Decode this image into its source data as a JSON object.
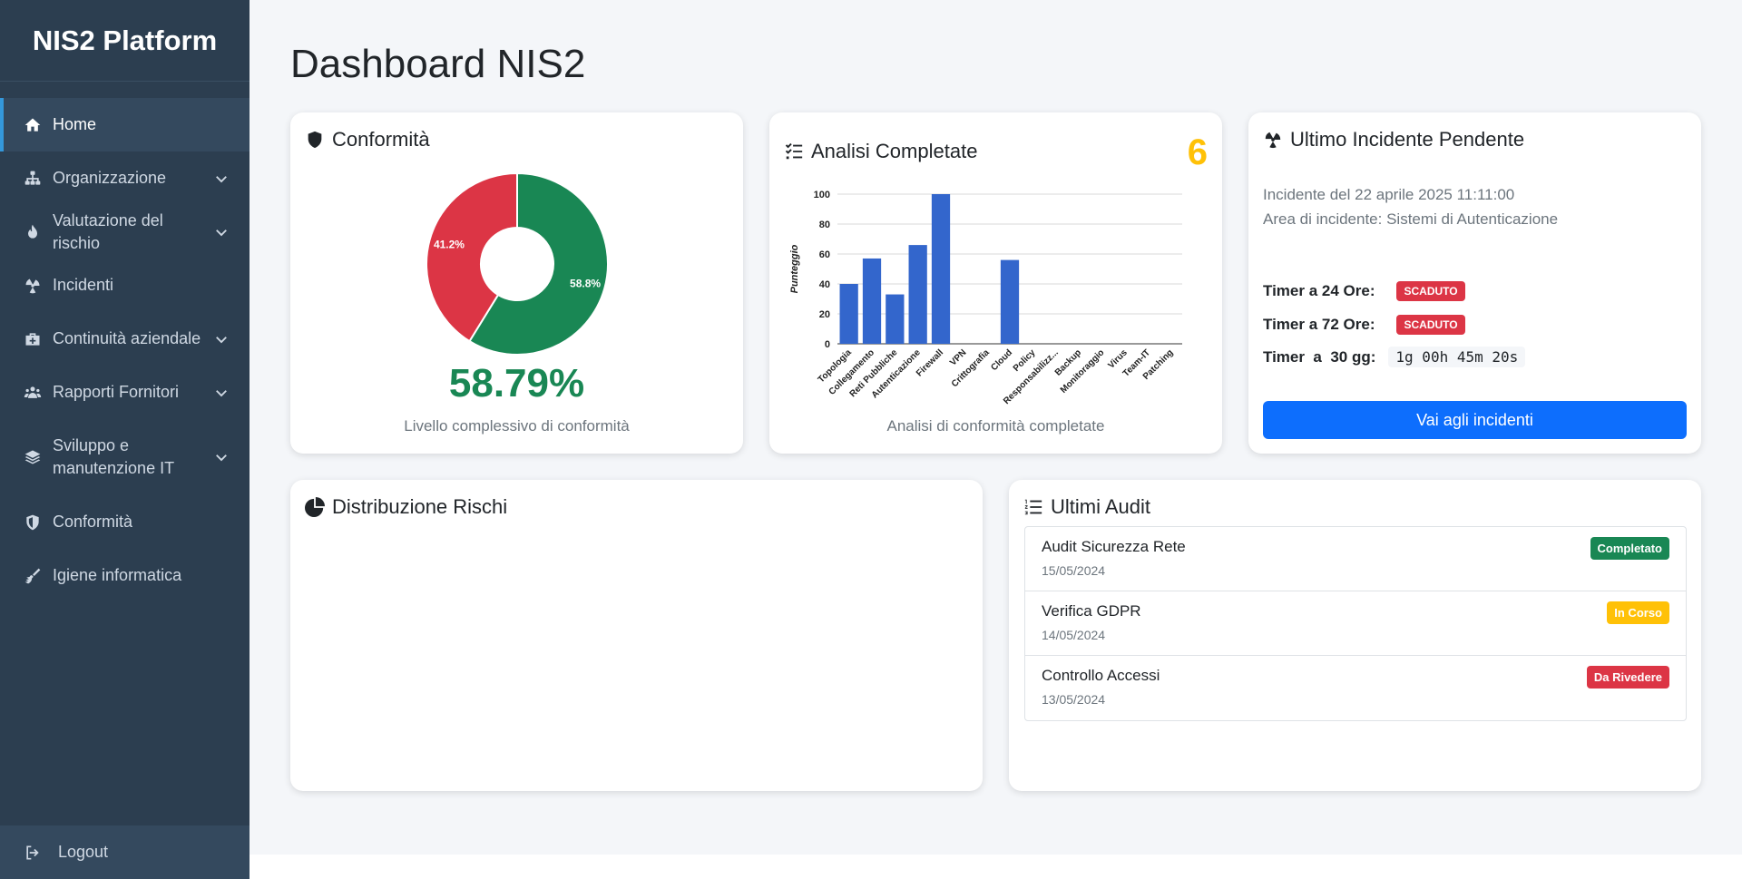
{
  "brand": "NIS2 Platform",
  "sidebar": {
    "items": [
      {
        "label": "Home",
        "icon": "home-icon"
      },
      {
        "label": "Organizzazione",
        "icon": "sitemap-icon"
      },
      {
        "label": "Valutazione del rischio",
        "icon": "fire-icon"
      },
      {
        "label": "Incidenti",
        "icon": "radiation-icon"
      },
      {
        "label": "Continuità aziendale",
        "icon": "briefcase-medical-icon"
      },
      {
        "label": "Rapporti Fornitori",
        "icon": "users-icon"
      },
      {
        "label": "Sviluppo e manutenzione IT",
        "icon": "layers-icon"
      },
      {
        "label": "Conformità",
        "icon": "shield-icon"
      },
      {
        "label": "Igiene informatica",
        "icon": "broom-icon"
      }
    ],
    "logout": "Logout"
  },
  "page_title": "Dashboard NIS2",
  "conformita": {
    "title": "Conformità",
    "percent": "58.79%",
    "subtitle": "Livello complessivo di conformità",
    "colors": {
      "compliant": "#198754",
      "noncompliant": "#dc3545"
    }
  },
  "analisi": {
    "title": "Analisi Completate",
    "count": "6",
    "subtitle": "Analisi di conformità completate"
  },
  "incidente": {
    "title": "Ultimo Incidente Pendente",
    "date_line": "Incidente del 22 aprile 2025 11:11:00",
    "area_line": "Area di incidente: Sistemi di Autenticazione",
    "timer24_label": "Timer a 24 Ore:",
    "timer24_status": "SCADUTO",
    "timer72_label": "Timer a 72 Ore:",
    "timer72_status": "SCADUTO",
    "timer30_label": "Timer  a  30 gg:",
    "timer30_value": "1g 00h 45m 20s",
    "button": "Vai agli incidenti"
  },
  "distribuzione": {
    "title": "Distribuzione Rischi"
  },
  "audit": {
    "title": "Ultimi Audit",
    "items": [
      {
        "name": "Audit Sicurezza Rete",
        "date": "15/05/2024",
        "status": "Completato",
        "color": "#198754",
        "text_color": "#ffffff"
      },
      {
        "name": "Verifica GDPR",
        "date": "14/05/2024",
        "status": "In Corso",
        "color": "#ffc107",
        "text_color": "#ffffff"
      },
      {
        "name": "Controllo Accessi",
        "date": "13/05/2024",
        "status": "Da Rivedere",
        "color": "#dc3545",
        "text_color": "#ffffff"
      }
    ]
  },
  "chart_data": [
    {
      "type": "pie",
      "categories": [
        "",
        ""
      ],
      "values": [
        58.8,
        41.2
      ],
      "labels": [
        "58.8%",
        "41.2%"
      ],
      "colors": [
        "#198754",
        "#dc3545"
      ],
      "donut": true
    },
    {
      "type": "bar",
      "categories": [
        "Topologia",
        "Collegamento",
        "Reti Pubbliche",
        "Autenticazione",
        "Firewall",
        "VPN",
        "Crittografia",
        "Cloud",
        "Policy",
        "Responsabilizz...",
        "Backup",
        "Monitoraggio",
        "Virus",
        "Team-IT",
        "Patching"
      ],
      "values": [
        40,
        57,
        33,
        66,
        100,
        0,
        0,
        56,
        0,
        0,
        0,
        0,
        0,
        0,
        0
      ],
      "ylabel": "Punteggio",
      "xlabel": "",
      "ylim": [
        0,
        100
      ],
      "yticks": [
        0,
        20,
        40,
        60,
        80,
        100
      ],
      "grid": true,
      "color": "#3366cc"
    }
  ]
}
